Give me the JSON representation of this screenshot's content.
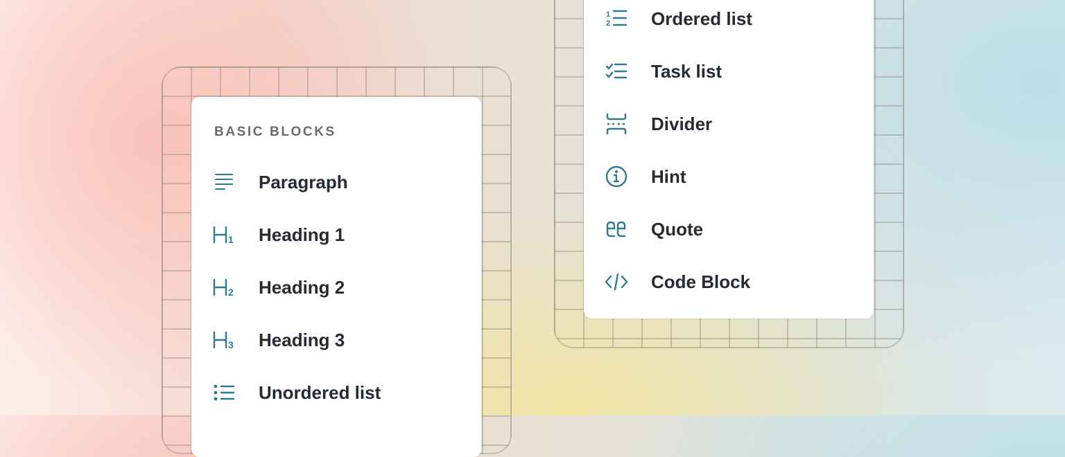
{
  "basic_blocks": {
    "section_title": "BASIC BLOCKS",
    "items": [
      {
        "label": "Paragraph",
        "icon": "paragraph-icon"
      },
      {
        "label": "Heading 1",
        "icon": "heading-1-icon"
      },
      {
        "label": "Heading 2",
        "icon": "heading-2-icon"
      },
      {
        "label": "Heading 3",
        "icon": "heading-3-icon"
      },
      {
        "label": "Unordered list",
        "icon": "unordered-list-icon"
      }
    ]
  },
  "more_blocks": {
    "items": [
      {
        "label": "Ordered list",
        "icon": "ordered-list-icon"
      },
      {
        "label": "Task list",
        "icon": "task-list-icon"
      },
      {
        "label": "Divider",
        "icon": "divider-icon"
      },
      {
        "label": "Hint",
        "icon": "info-icon"
      },
      {
        "label": "Quote",
        "icon": "quote-icon"
      },
      {
        "label": "Code Block",
        "icon": "code-icon"
      }
    ]
  },
  "colors": {
    "icon": "#2b7a92",
    "text": "#262a31",
    "section": "#646a74"
  }
}
